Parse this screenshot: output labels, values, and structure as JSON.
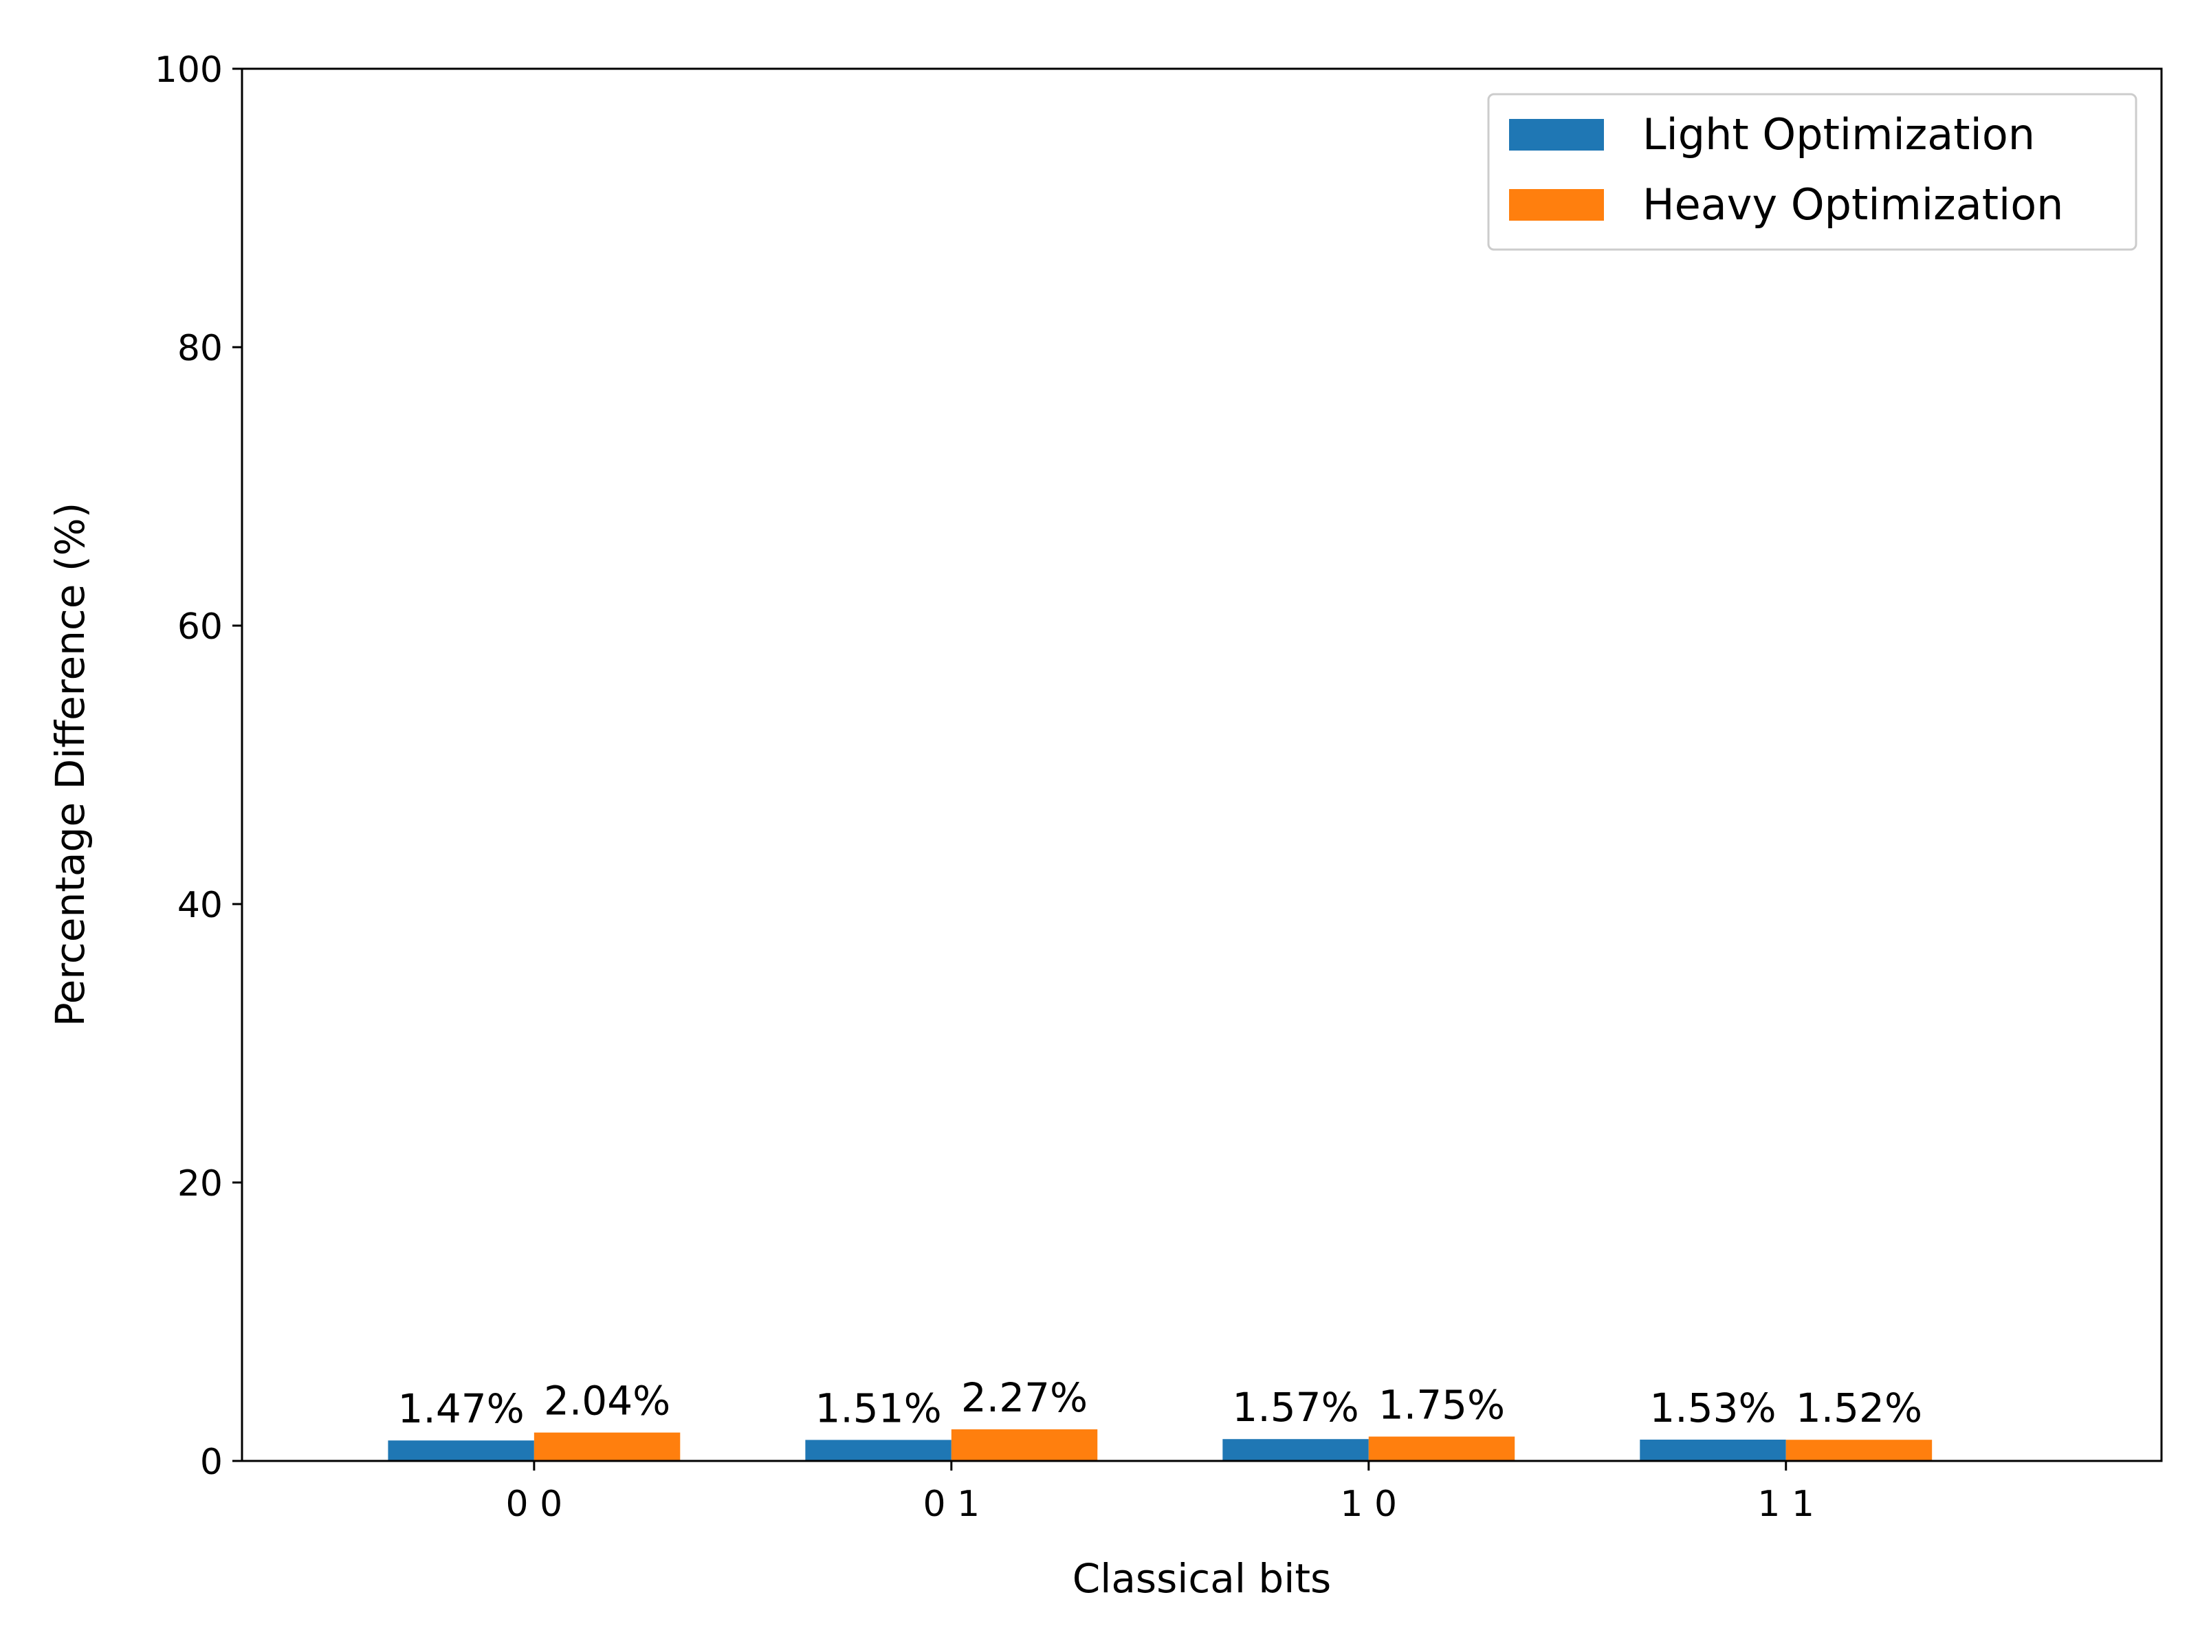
{
  "chart_data": {
    "type": "bar",
    "xlabel": "Classical bits",
    "ylabel": "Percentage Difference (%)",
    "categories": [
      "0 0",
      "0 1",
      "1 0",
      "1 1"
    ],
    "ylim": [
      0,
      100
    ],
    "yticks": [
      0,
      20,
      40,
      60,
      80,
      100
    ],
    "grid": false,
    "legend_position": "top-right",
    "series": [
      {
        "name": "Light Optimization",
        "color": "#1f77b4",
        "values": [
          1.47,
          1.51,
          1.57,
          1.53
        ],
        "labels": [
          "1.47%",
          "1.51%",
          "1.57%",
          "1.53%"
        ]
      },
      {
        "name": "Heavy Optimization",
        "color": "#ff7f0e",
        "values": [
          2.04,
          2.27,
          1.75,
          1.52
        ],
        "labels": [
          "2.04%",
          "2.27%",
          "1.75%",
          "1.52%"
        ]
      }
    ]
  }
}
